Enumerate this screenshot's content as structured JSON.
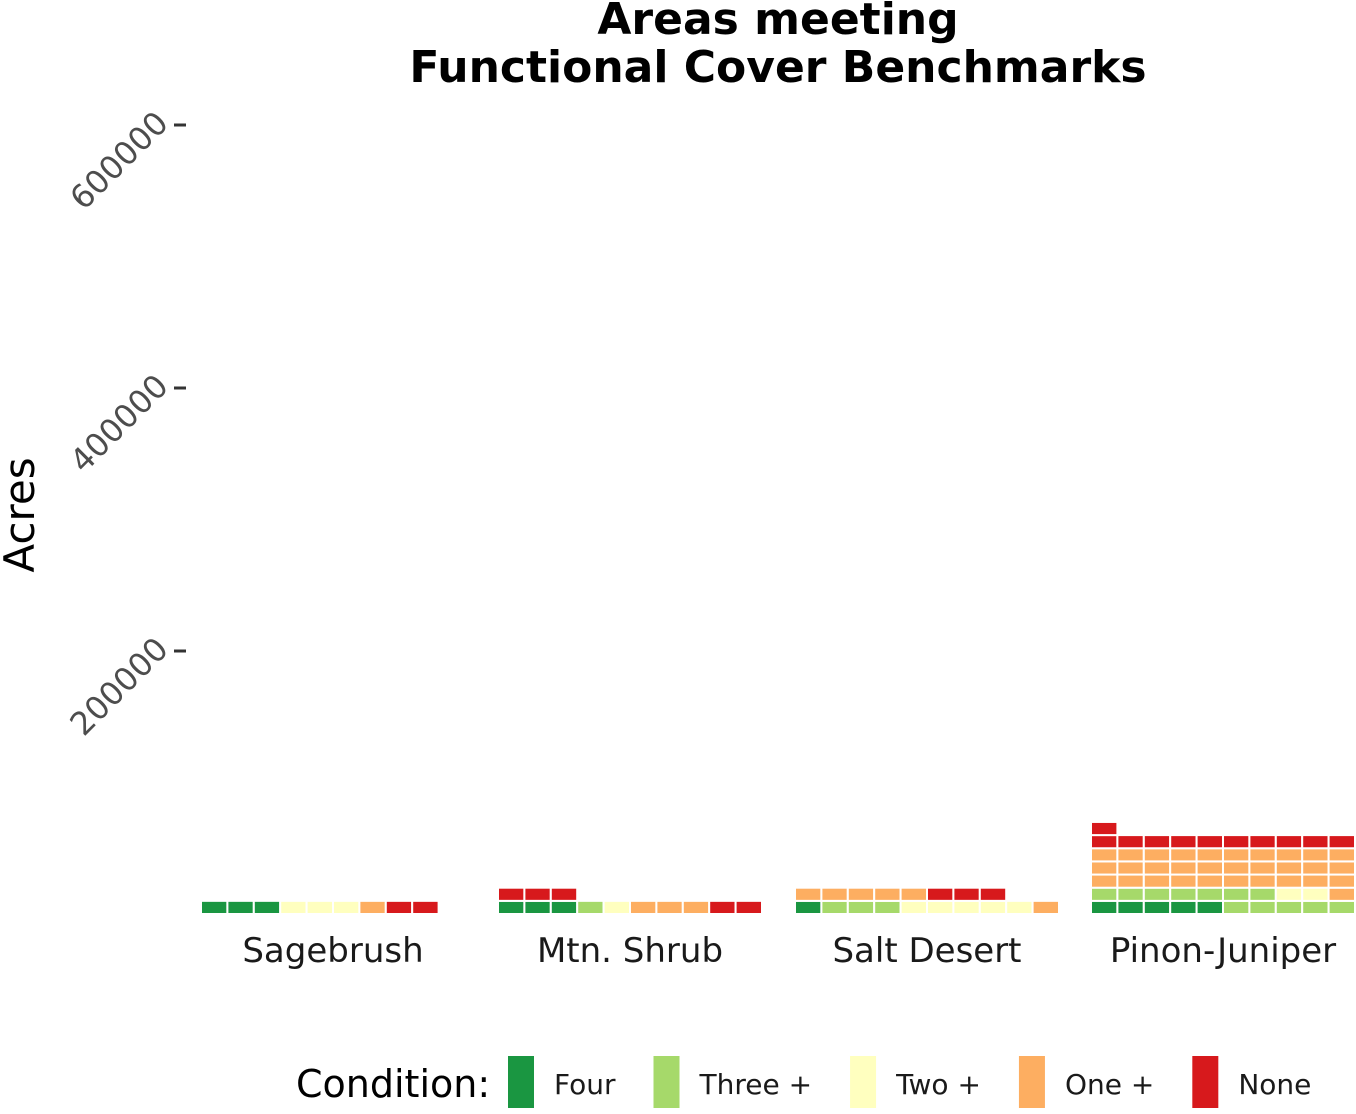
{
  "chart_data": {
    "type": "waffle-bar",
    "title_lines": [
      "Areas meeting",
      "Functional Cover Benchmarks"
    ],
    "ylabel": "Acres",
    "ylim": [
      0,
      620000
    ],
    "yticks": [
      200000,
      400000,
      600000
    ],
    "ytick_labels": [
      "200000",
      "400000",
      "600000"
    ],
    "categories": [
      "Sagebrush",
      "Mtn. Shrub",
      "Salt Desert",
      "Pinon-Juniper"
    ],
    "units_per_cell": 10000,
    "cells_per_row": 10,
    "series": [
      {
        "name": "Four",
        "color": "#1a9641",
        "values": [
          30000,
          30000,
          10000,
          50000
        ]
      },
      {
        "name": "Three +",
        "color": "#a6d96a",
        "values": [
          0,
          10000,
          30000,
          120000
        ]
      },
      {
        "name": "Two +",
        "color": "#ffffbf",
        "values": [
          30000,
          10000,
          50000,
          20000
        ]
      },
      {
        "name": "One +",
        "color": "#fdae61",
        "values": [
          10000,
          30000,
          60000,
          310000
        ]
      },
      {
        "name": "None",
        "color": "#d7191c",
        "values": [
          20000,
          50000,
          30000,
          110000
        ]
      }
    ],
    "legend": {
      "title": "Condition:",
      "position": "bottom"
    }
  }
}
